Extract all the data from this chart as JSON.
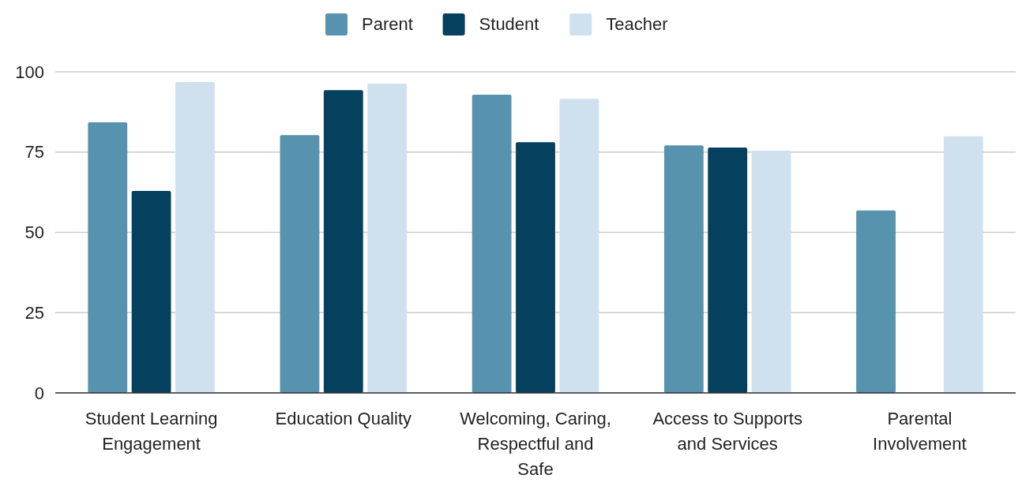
{
  "chart_data": {
    "type": "bar",
    "categories": [
      "Student Learning Engagement",
      "Education Quality",
      "Welcoming, Caring, Respectful and Safe",
      "Access to Supports and Services",
      "Parental Involvement"
    ],
    "series": [
      {
        "name": "Parent",
        "color": "#5793ae",
        "values": [
          84.3,
          80.3,
          92.9,
          77.1,
          56.8
        ]
      },
      {
        "name": "Student",
        "color": "#05405e",
        "values": [
          62.9,
          94.3,
          78.1,
          76.4,
          null
        ]
      },
      {
        "name": "Teacher",
        "color": "#cfe0ef",
        "values": [
          96.8,
          96.3,
          91.6,
          75.4,
          79.9
        ]
      }
    ],
    "ylim": [
      0,
      100
    ],
    "yticks": [
      0,
      25,
      50,
      75,
      100
    ],
    "grid": "y",
    "legend": "top"
  }
}
